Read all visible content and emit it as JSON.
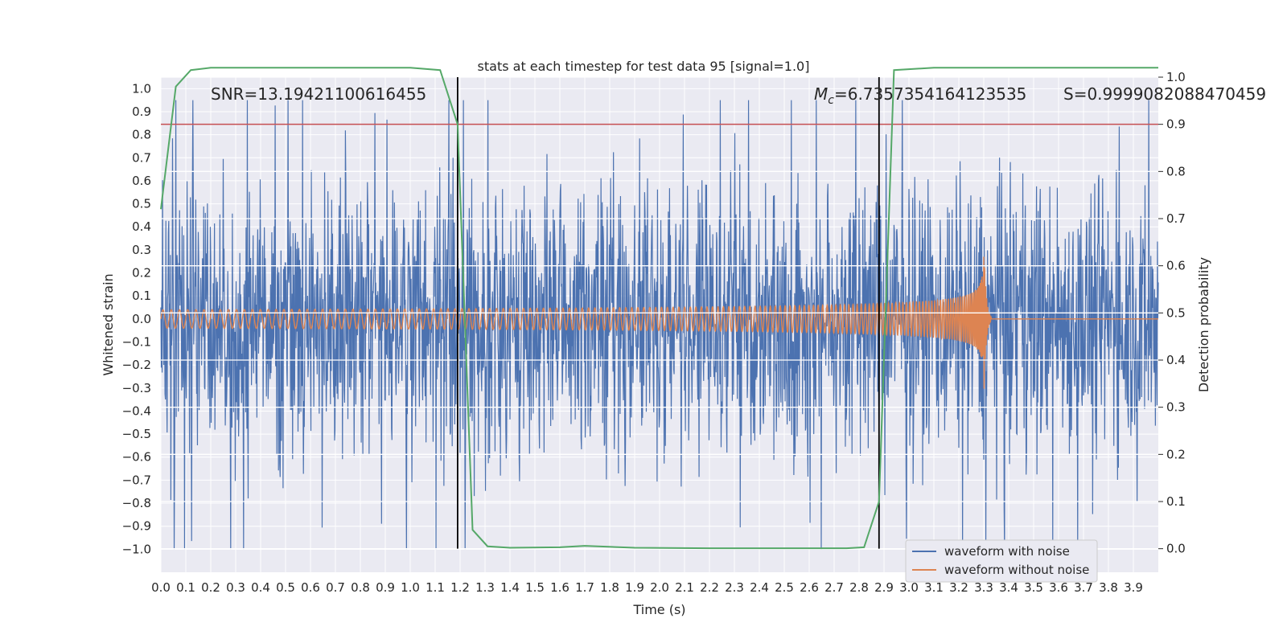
{
  "chart_data": {
    "type": "line",
    "title": "stats at each timestep for test data 95 [signal=1.0]",
    "xlabel": "Time (s)",
    "ylabel_left": "Whitened strain",
    "ylabel_right": "Detection probability",
    "xlim": [
      0.0,
      4.0
    ],
    "ylim_left": [
      -1.1,
      1.05
    ],
    "ylim_right": [
      -0.05,
      1.0
    ],
    "x_ticks": [
      "0.0",
      "0.1",
      "0.2",
      "0.3",
      "0.4",
      "0.5",
      "0.6",
      "0.7",
      "0.8",
      "0.9",
      "1.0",
      "1.1",
      "1.2",
      "1.3",
      "1.4",
      "1.5",
      "1.6",
      "1.7",
      "1.8",
      "1.9",
      "2.0",
      "2.1",
      "2.2",
      "2.3",
      "2.4",
      "2.5",
      "2.6",
      "2.7",
      "2.8",
      "2.9",
      "3.0",
      "3.1",
      "3.2",
      "3.3",
      "3.4",
      "3.5",
      "3.6",
      "3.7",
      "3.8",
      "3.9"
    ],
    "y_ticks_left": [
      "1.0",
      "0.9",
      "0.8",
      "0.7",
      "0.6",
      "0.5",
      "0.4",
      "0.3",
      "0.2",
      "0.1",
      "0.0",
      "−0.1",
      "−0.2",
      "−0.3",
      "−0.4",
      "−0.5",
      "−0.6",
      "−0.7",
      "−0.8",
      "−0.9",
      "−1.0"
    ],
    "y_ticks_right": [
      "1.0",
      "0.9",
      "0.8",
      "0.7",
      "0.6",
      "0.5",
      "0.4",
      "0.3",
      "0.2",
      "0.1",
      "0.0"
    ],
    "grid": true,
    "legend_position": "bottom-right",
    "annotations": {
      "snr": "SNR=13.19421100616455",
      "mc_symbol": "M",
      "mc_sub": "c",
      "mc_value": "=6.7357354164123535",
      "s_value": "S=0.9999082088470459"
    },
    "series": [
      {
        "name": "waveform with noise",
        "color": "#4c72b0",
        "axis": "left",
        "noise_amplitude": 0.95,
        "x_range": [
          0.0,
          4.0
        ]
      },
      {
        "name": "waveform without noise",
        "color": "#dd8452",
        "axis": "left",
        "chirp_start_amplitude": 0.04,
        "chirp_peak_amplitude": 0.38,
        "merger_time": 3.3
      },
      {
        "name": "detection probability",
        "color": "#55a868",
        "axis": "right",
        "x": [
          0.0,
          0.06,
          0.12,
          0.2,
          0.4,
          0.7,
          1.0,
          1.12,
          1.19,
          1.25,
          1.31,
          1.4,
          1.6,
          1.7,
          1.9,
          2.2,
          2.5,
          2.75,
          2.82,
          2.88,
          2.94,
          3.1,
          3.5,
          4.0
        ],
        "y": [
          0.72,
          0.98,
          1.015,
          1.02,
          1.02,
          1.02,
          1.02,
          1.015,
          0.9,
          0.04,
          0.005,
          0.002,
          0.003,
          0.006,
          0.002,
          0.001,
          0.001,
          0.001,
          0.003,
          0.1,
          1.015,
          1.02,
          1.02,
          1.02
        ]
      }
    ],
    "threshold": {
      "value": 0.9,
      "axis": "right",
      "color": "#c44e52"
    },
    "vlines": [
      1.19,
      2.88
    ],
    "vline_range": [
      0.0,
      1.0
    ]
  }
}
